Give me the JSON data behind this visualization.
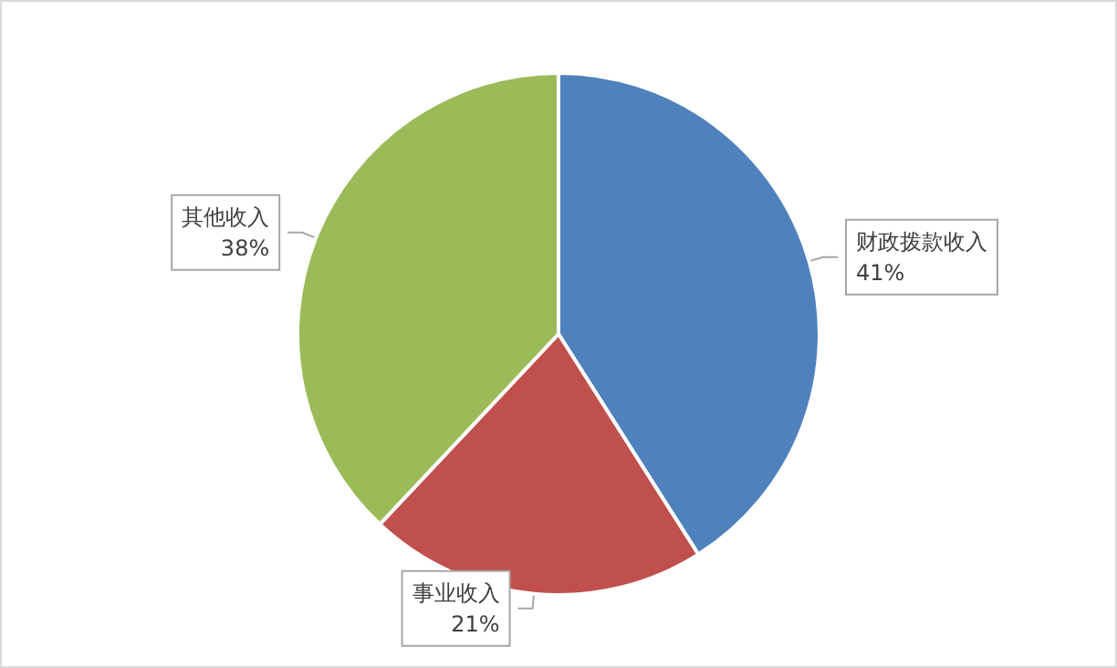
{
  "chart_data": {
    "type": "pie",
    "categories": [
      "财政拨款收入",
      "事业收入",
      "其他收入"
    ],
    "values": [
      41,
      21,
      38
    ],
    "colors": [
      "#4f81bd",
      "#c0504d",
      "#9bbb59"
    ],
    "value_labels": [
      "41%",
      "21%",
      "38%"
    ],
    "legend": false
  }
}
